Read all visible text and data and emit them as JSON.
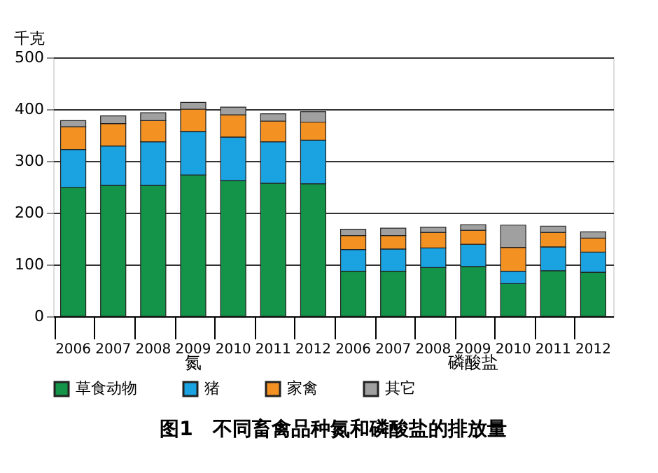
{
  "chart_data": {
    "type": "bar",
    "stacked": true,
    "title": "图1　不同畜禽品种氮和磷酸盐的排放量",
    "ylabel": "千克",
    "categories": [
      "2006",
      "2007",
      "2008",
      "2009",
      "2010",
      "2011",
      "2012",
      "2006",
      "2007",
      "2008",
      "2009",
      "2010",
      "2011",
      "2012"
    ],
    "annotations": [
      "氮",
      "磷酸盐"
    ],
    "series": [
      {
        "name": "草食动物",
        "color": "#139448",
        "values": [
          249,
          253,
          253,
          273,
          262,
          257,
          256,
          87,
          87,
          94,
          96,
          63,
          88,
          85
        ]
      },
      {
        "name": "猪",
        "color": "#1aa3e0",
        "values": [
          73,
          76,
          84,
          84,
          84,
          80,
          84,
          42,
          43,
          38,
          43,
          24,
          46,
          39
        ]
      },
      {
        "name": "家禽",
        "color": "#f39222",
        "values": [
          44,
          43,
          41,
          43,
          43,
          40,
          35,
          27,
          26,
          30,
          27,
          46,
          28,
          27
        ]
      },
      {
        "name": "其它",
        "color": "#a0a0a0",
        "values": [
          12,
          15,
          15,
          13,
          15,
          14,
          20,
          12,
          14,
          10,
          11,
          43,
          12,
          12
        ]
      }
    ],
    "ylim": [
      0,
      500
    ],
    "yticks": [
      0,
      100,
      200,
      300,
      400,
      500
    ],
    "grid": "y",
    "legend": "bottom"
  }
}
